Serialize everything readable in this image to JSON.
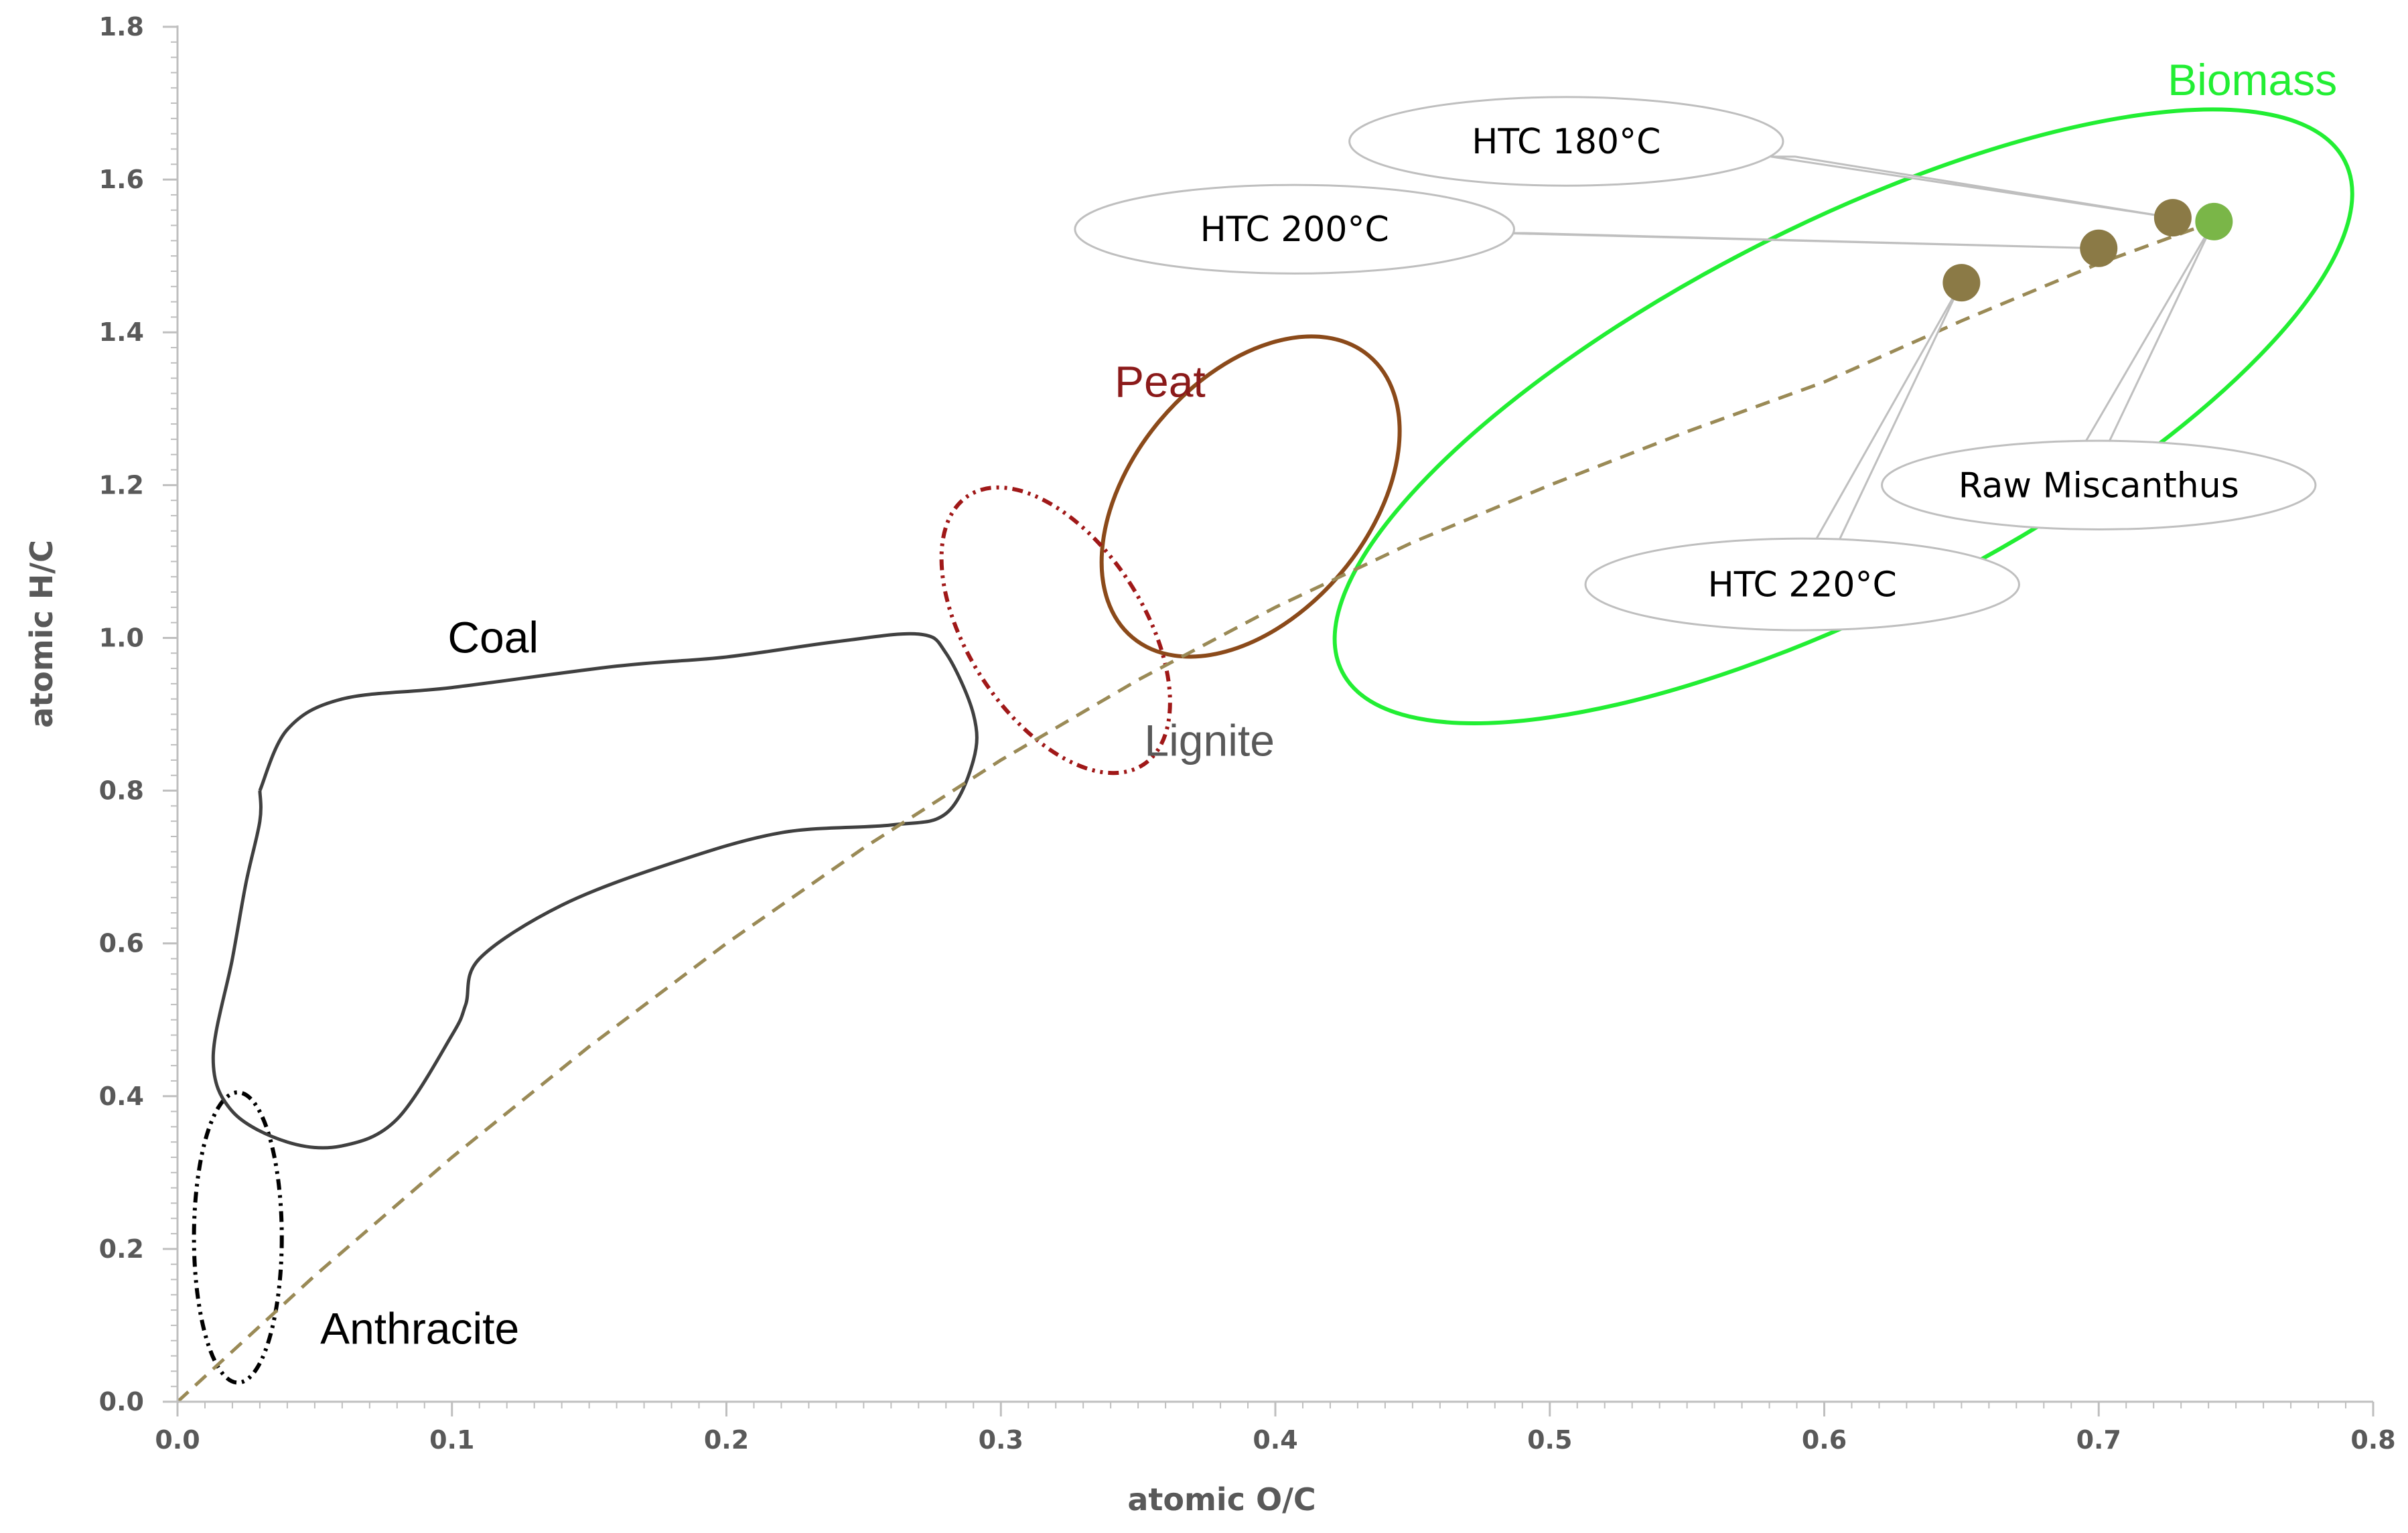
{
  "chart_data": {
    "type": "scatter",
    "title": "",
    "xlabel": "atomic O/C",
    "ylabel": "atomic H/C",
    "xlim": [
      0,
      0.8
    ],
    "ylim": [
      0,
      1.8
    ],
    "x_ticks": [
      "0.0",
      "0.1",
      "0.2",
      "0.3",
      "0.4",
      "0.5",
      "0.6",
      "0.7",
      "0.8"
    ],
    "y_ticks": [
      "0.0",
      "0.2",
      "0.4",
      "0.6",
      "0.8",
      "1.0",
      "1.2",
      "1.4",
      "1.6",
      "1.8"
    ],
    "grid": false,
    "legend": "none",
    "points": [
      {
        "label": "HTC 180°C",
        "x": 0.727,
        "y": 1.55,
        "color": "#8b7a46"
      },
      {
        "label": "HTC 200°C",
        "x": 0.7,
        "y": 1.51,
        "color": "#8b7a46"
      },
      {
        "label": "HTC 220°C",
        "x": 0.65,
        "y": 1.465,
        "color": "#8b7a46"
      },
      {
        "label": "Raw Miscanthus",
        "x": 0.742,
        "y": 1.545,
        "color": "#7ab648"
      }
    ],
    "trend_line": {
      "style": "dashed",
      "color": "#9a8a56",
      "x": [
        0.0,
        0.05,
        0.1,
        0.15,
        0.2,
        0.25,
        0.3,
        0.35,
        0.4,
        0.45,
        0.5,
        0.55,
        0.6,
        0.65,
        0.7,
        0.742
      ],
      "y": [
        0.0,
        0.165,
        0.32,
        0.465,
        0.6,
        0.725,
        0.84,
        0.945,
        1.04,
        1.125,
        1.2,
        1.27,
        1.335,
        1.415,
        1.49,
        1.545
      ]
    },
    "regions": [
      {
        "label": "Biomass",
        "color": "#22ee33",
        "style": "solid",
        "shape": "ellipse",
        "cx": 0.607,
        "cy": 1.29,
        "rx": 0.205,
        "ry": 0.25,
        "rotation_deg": -27
      },
      {
        "label": "Peat",
        "color": "#8b4a1a",
        "style": "solid",
        "shape": "ellipse",
        "cx": 0.391,
        "cy": 1.185,
        "rx": 0.067,
        "ry": 0.155,
        "rotation_deg": -50
      },
      {
        "label": "Lignite",
        "color": "#a01818",
        "style": "dash-dot-dot",
        "shape": "ellipse",
        "cx": 0.32,
        "cy": 1.01,
        "rx": 0.032,
        "ry": 0.21,
        "rotation_deg": -33
      },
      {
        "label": "Anthracite",
        "color": "#000000",
        "style": "dash-dot-dot",
        "shape": "ellipse",
        "cx": 0.022,
        "cy": 0.215,
        "rx": 0.016,
        "ry": 0.19,
        "rotation_deg": 0
      },
      {
        "label": "Coal",
        "color": "#404040",
        "style": "solid",
        "shape": "path",
        "x": [
          0.03,
          0.04,
          0.06,
          0.1,
          0.16,
          0.2,
          0.24,
          0.27,
          0.28,
          0.29,
          0.29,
          0.28,
          0.26,
          0.22,
          0.18,
          0.14,
          0.11,
          0.105,
          0.1,
          0.08,
          0.06,
          0.04,
          0.02,
          0.013,
          0.02,
          0.025,
          0.03,
          0.03
        ],
        "y": [
          0.8,
          0.88,
          0.92,
          0.935,
          0.963,
          0.975,
          0.995,
          1.005,
          0.98,
          0.9,
          0.84,
          0.77,
          0.755,
          0.745,
          0.705,
          0.65,
          0.58,
          0.52,
          0.48,
          0.37,
          0.335,
          0.34,
          0.38,
          0.45,
          0.58,
          0.68,
          0.76,
          0.8
        ]
      }
    ],
    "annotations": [
      {
        "text": "HTC 180°C",
        "target": "HTC 180°C",
        "cx": 0.506,
        "cy": 1.65,
        "rx": 0.079,
        "ry": 0.058,
        "tail_x": 0.585,
        "tail_y": 1.63
      },
      {
        "text": "HTC 200°C",
        "target": "HTC 200°C",
        "cx": 0.407,
        "cy": 1.535,
        "rx": 0.08,
        "ry": 0.058,
        "tail_x": 0.486,
        "tail_y": 1.53
      },
      {
        "text": "HTC 220°C",
        "target": "HTC 220°C",
        "cx": 0.592,
        "cy": 1.07,
        "rx": 0.079,
        "ry": 0.06,
        "tail_x": 0.6,
        "tail_y": 1.12
      },
      {
        "text": "Raw Miscanthus",
        "target": "Raw Miscanthus",
        "cx": 0.7,
        "cy": 1.2,
        "rx": 0.079,
        "ry": 0.058,
        "tail_x": 0.6985,
        "tail_y": 1.25
      }
    ],
    "region_labels": [
      {
        "text": "Biomass",
        "x": 0.756,
        "y": 1.73,
        "color": "#22ee33",
        "anchor": "middle"
      },
      {
        "text": "Peat",
        "x": 0.358,
        "y": 1.335,
        "color": "#8b1a1a",
        "anchor": "middle"
      },
      {
        "text": "Lignite",
        "x": 0.376,
        "y": 0.865,
        "color": "#595959",
        "anchor": "middle"
      },
      {
        "text": "Coal",
        "x": 0.115,
        "y": 1.0,
        "color": "#000000",
        "anchor": "middle"
      },
      {
        "text": "Anthracite",
        "x": 0.052,
        "y": 0.095,
        "color": "#000000",
        "anchor": "start"
      }
    ]
  }
}
